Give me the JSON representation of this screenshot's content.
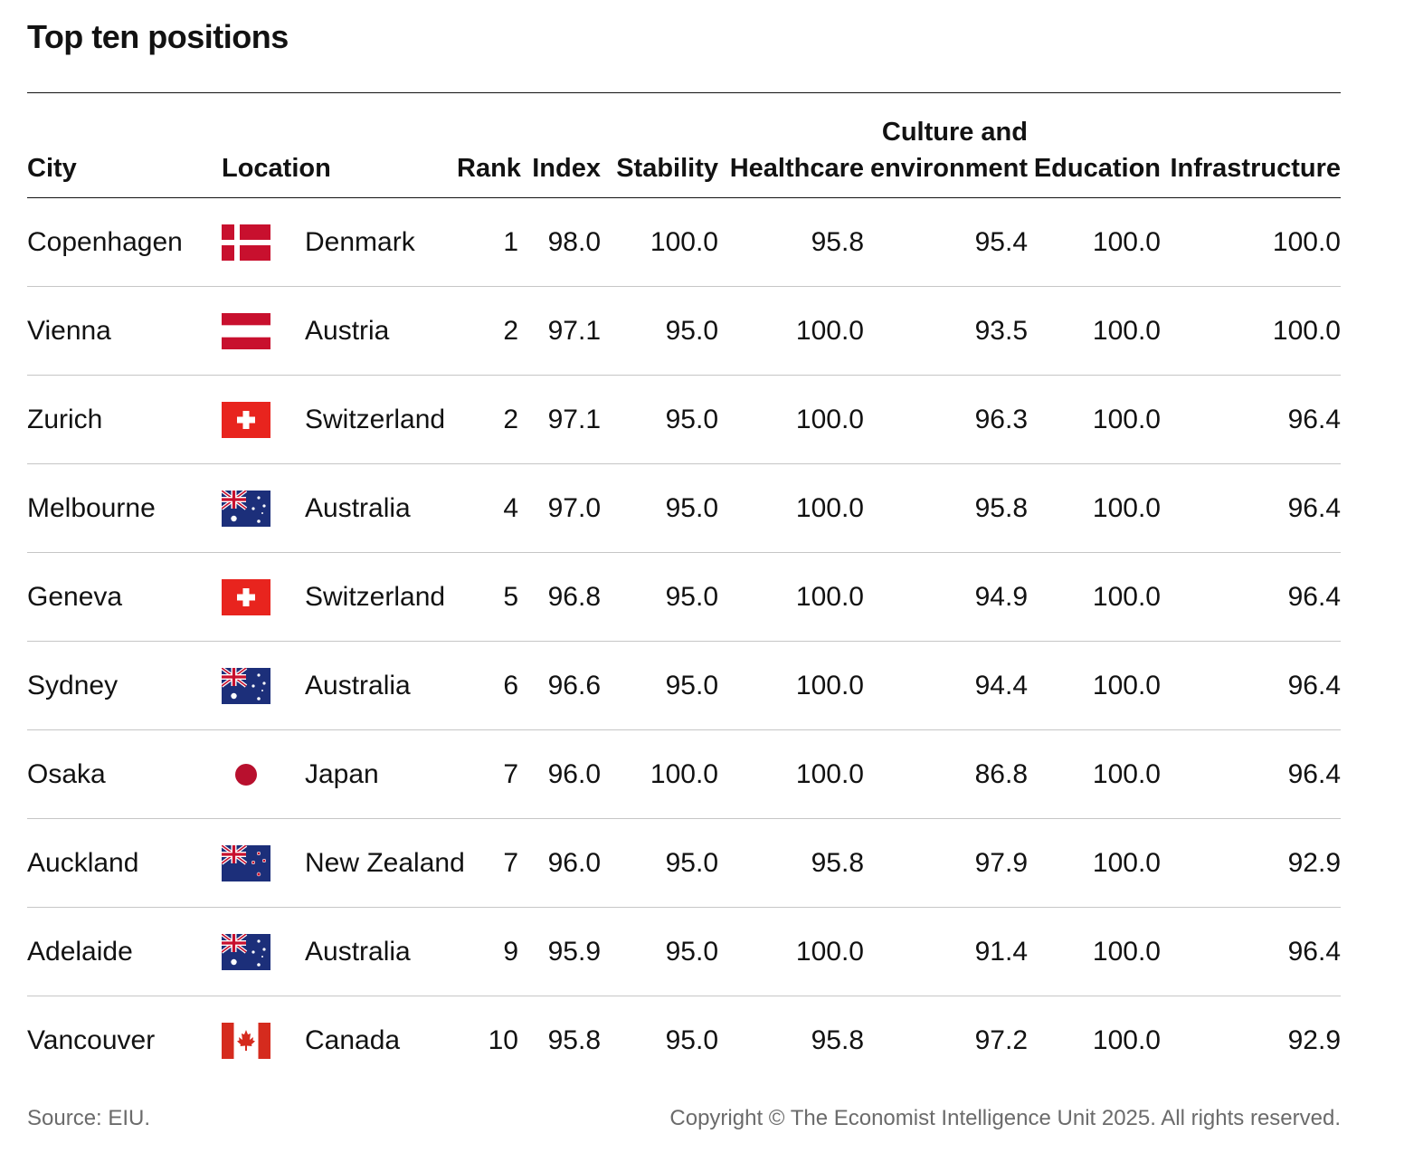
{
  "title": "Top ten positions",
  "source": "Source: EIU.",
  "copyright": "Copyright © The Economist Intelligence Unit 2025. All rights reserved.",
  "colors": {
    "text": "#121212",
    "muted": "#6b6b6b",
    "rule": "#c6c6c6",
    "flag_red": "#c8102e"
  },
  "chart_data": {
    "type": "table",
    "title": "Top ten positions",
    "columns": {
      "city": "City",
      "location": "Location",
      "rank": "Rank",
      "index": "Index",
      "stability": "Stability",
      "healthcare": "Healthcare",
      "culture_line1": "Culture and",
      "culture_line2": "environment",
      "education": "Education",
      "infrastructure": "Infrastructure"
    },
    "rows": [
      {
        "city": "Copenhagen",
        "flag": "denmark-flag-icon",
        "location": "Denmark",
        "rank": "1",
        "index": "98.0",
        "stability": "100.0",
        "healthcare": "95.8",
        "culture": "95.4",
        "education": "100.0",
        "infrastructure": "100.0"
      },
      {
        "city": "Vienna",
        "flag": "austria-flag-icon",
        "location": "Austria",
        "rank": "2",
        "index": "97.1",
        "stability": "95.0",
        "healthcare": "100.0",
        "culture": "93.5",
        "education": "100.0",
        "infrastructure": "100.0"
      },
      {
        "city": "Zurich",
        "flag": "switzerland-flag-icon",
        "location": "Switzerland",
        "rank": "2",
        "index": "97.1",
        "stability": "95.0",
        "healthcare": "100.0",
        "culture": "96.3",
        "education": "100.0",
        "infrastructure": "96.4"
      },
      {
        "city": "Melbourne",
        "flag": "australia-flag-icon",
        "location": "Australia",
        "rank": "4",
        "index": "97.0",
        "stability": "95.0",
        "healthcare": "100.0",
        "culture": "95.8",
        "education": "100.0",
        "infrastructure": "96.4"
      },
      {
        "city": "Geneva",
        "flag": "switzerland-flag-icon",
        "location": "Switzerland",
        "rank": "5",
        "index": "96.8",
        "stability": "95.0",
        "healthcare": "100.0",
        "culture": "94.9",
        "education": "100.0",
        "infrastructure": "96.4"
      },
      {
        "city": "Sydney",
        "flag": "australia-flag-icon",
        "location": "Australia",
        "rank": "6",
        "index": "96.6",
        "stability": "95.0",
        "healthcare": "100.0",
        "culture": "94.4",
        "education": "100.0",
        "infrastructure": "96.4"
      },
      {
        "city": "Osaka",
        "flag": "japan-flag-icon",
        "location": "Japan",
        "rank": "7",
        "index": "96.0",
        "stability": "100.0",
        "healthcare": "100.0",
        "culture": "86.8",
        "education": "100.0",
        "infrastructure": "96.4"
      },
      {
        "city": "Auckland",
        "flag": "new-zealand-flag-icon",
        "location": "New Zealand",
        "rank": "7",
        "index": "96.0",
        "stability": "95.0",
        "healthcare": "95.8",
        "culture": "97.9",
        "education": "100.0",
        "infrastructure": "92.9"
      },
      {
        "city": "Adelaide",
        "flag": "australia-flag-icon",
        "location": "Australia",
        "rank": "9",
        "index": "95.9",
        "stability": "95.0",
        "healthcare": "100.0",
        "culture": "91.4",
        "education": "100.0",
        "infrastructure": "96.4"
      },
      {
        "city": "Vancouver",
        "flag": "canada-flag-icon",
        "location": "Canada",
        "rank": "10",
        "index": "95.8",
        "stability": "95.0",
        "healthcare": "95.8",
        "culture": "97.2",
        "education": "100.0",
        "infrastructure": "92.9"
      }
    ]
  }
}
